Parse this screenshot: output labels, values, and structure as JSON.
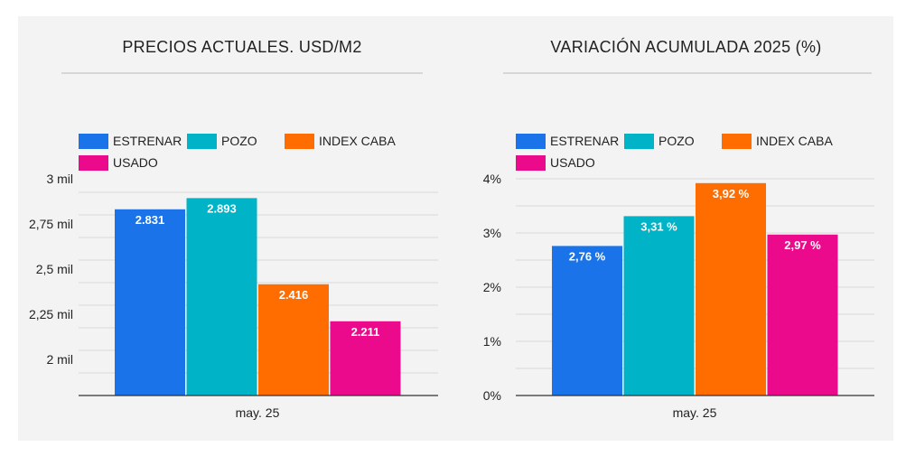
{
  "colors": {
    "ESTRENAR": "#1a73e8",
    "POZO": "#00b3c7",
    "INDEX CABA": "#ff6d00",
    "USADO": "#ec0a8c"
  },
  "chart_data": [
    {
      "type": "bar",
      "title": "PRECIOS ACTUALES. USD/M2",
      "categories": [
        "may. 25"
      ],
      "series": [
        {
          "name": "ESTRENAR",
          "values": [
            2831
          ],
          "label": "2.831"
        },
        {
          "name": "POZO",
          "values": [
            2893
          ],
          "label": "2.893"
        },
        {
          "name": "INDEX CABA",
          "values": [
            2416
          ],
          "label": "2.416"
        },
        {
          "name": "USADO",
          "values": [
            2211
          ],
          "label": "2.211"
        }
      ],
      "ylim": [
        1800,
        3000
      ],
      "yticks": [
        {
          "value": 2000,
          "label": "2 mil"
        },
        {
          "value": 2250,
          "label": "2,25 mil"
        },
        {
          "value": 2500,
          "label": "2,5 mil"
        },
        {
          "value": 2750,
          "label": "2,75 mil"
        },
        {
          "value": 3000,
          "label": "3 mil"
        }
      ],
      "grid": true,
      "legend": "top-left"
    },
    {
      "type": "bar",
      "title": "VARIACIÓN ACUMULADA 2025 (%)",
      "categories": [
        "may. 25"
      ],
      "series": [
        {
          "name": "ESTRENAR",
          "values": [
            2.76
          ],
          "label": "2,76 %"
        },
        {
          "name": "POZO",
          "values": [
            3.31
          ],
          "label": "3,31 %"
        },
        {
          "name": "INDEX CABA",
          "values": [
            3.92
          ],
          "label": "3,92 %"
        },
        {
          "name": "USADO",
          "values": [
            2.97
          ],
          "label": "2,97 %"
        }
      ],
      "ylim": [
        0,
        4
      ],
      "yticks": [
        {
          "value": 0,
          "label": "0%"
        },
        {
          "value": 1,
          "label": "1%"
        },
        {
          "value": 2,
          "label": "2%"
        },
        {
          "value": 3,
          "label": "3%"
        },
        {
          "value": 4,
          "label": "4%"
        }
      ],
      "grid": true,
      "legend": "top-left"
    }
  ]
}
